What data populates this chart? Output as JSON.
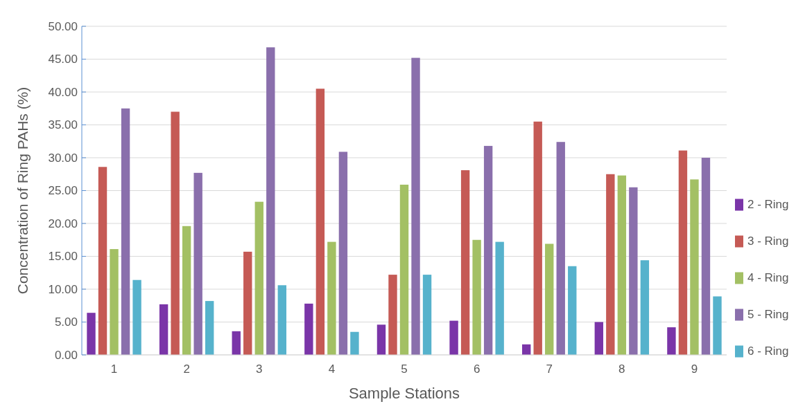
{
  "chart_data": {
    "type": "bar",
    "xlabel": "Sample Stations",
    "ylabel": "Concentration of Ring PAHs (%)",
    "categories": [
      "1",
      "2",
      "3",
      "4",
      "5",
      "6",
      "7",
      "8",
      "9"
    ],
    "series": [
      {
        "name": "2 - Ring",
        "color": "#7a35a8",
        "values": [
          6.4,
          7.7,
          3.6,
          7.8,
          4.6,
          5.2,
          1.6,
          5.0,
          4.2
        ]
      },
      {
        "name": "3 - Ring",
        "color": "#c55a55",
        "values": [
          28.6,
          37.0,
          15.7,
          40.5,
          12.2,
          28.1,
          35.5,
          27.5,
          31.1
        ]
      },
      {
        "name": "4 - Ring",
        "color": "#a3c064",
        "values": [
          16.1,
          19.6,
          23.3,
          17.2,
          25.9,
          17.5,
          16.9,
          27.3,
          26.7
        ]
      },
      {
        "name": "5 - Ring",
        "color": "#8a6fac",
        "values": [
          37.5,
          27.7,
          46.8,
          30.9,
          45.2,
          31.8,
          32.4,
          25.5,
          30.0
        ]
      },
      {
        "name": "6 - Ring",
        "color": "#56b2cc",
        "values": [
          11.4,
          8.2,
          10.6,
          3.5,
          12.2,
          17.2,
          13.5,
          14.4,
          8.9
        ]
      }
    ],
    "ylim": [
      0,
      50
    ],
    "yticks": [
      {
        "value": 0,
        "label": "0.00"
      },
      {
        "value": 5,
        "label": "5.00"
      },
      {
        "value": 10,
        "label": "10.00"
      },
      {
        "value": 15,
        "label": "15.00"
      },
      {
        "value": 20,
        "label": "20.00"
      },
      {
        "value": 25,
        "label": "25.00"
      },
      {
        "value": 30,
        "label": "30.00"
      },
      {
        "value": 35,
        "label": "35.00"
      },
      {
        "value": 40,
        "label": "40.00"
      },
      {
        "value": 45,
        "label": "45.00"
      },
      {
        "value": 50,
        "label": "50.00"
      }
    ],
    "grid": "y",
    "legend": "right"
  }
}
